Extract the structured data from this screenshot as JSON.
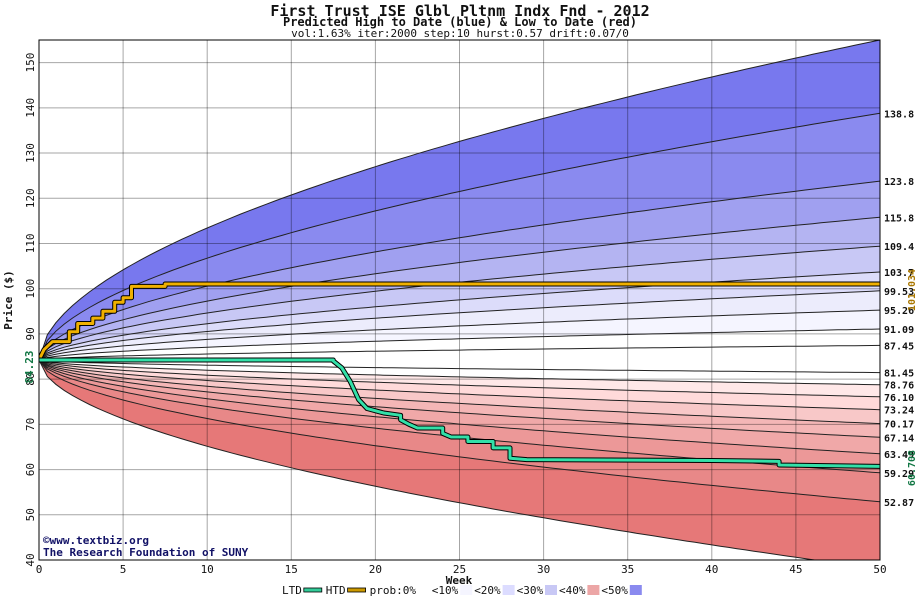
{
  "chart_data": {
    "type": "area",
    "title": "First Trust ISE Glbl Pltnm Indx Fnd - 2012",
    "subtitle": "Predicted High to Date (blue) &  Low to Date (red)",
    "params": "vol:1.63% iter:2000 step:10 hurst:0.57 drift:0.07/0",
    "xlabel": "Week",
    "ylabel": "Price ($)",
    "xlim": [
      0,
      50
    ],
    "ylim": [
      40,
      155
    ],
    "x_ticks": [
      0,
      5,
      10,
      15,
      20,
      25,
      30,
      35,
      40,
      45,
      50
    ],
    "y_ticks": [
      40,
      50,
      60,
      70,
      80,
      90,
      100,
      110,
      120,
      130,
      140,
      150
    ],
    "grid": true,
    "start_price": 84.23,
    "start_label": "84.23",
    "high_band_end_values": [
      87.45,
      91.09,
      95.26,
      99.53,
      103.7,
      109.4,
      115.8,
      123.8,
      138.8,
      155
    ],
    "low_band_end_values": [
      81.45,
      78.76,
      76.1,
      73.24,
      70.17,
      67.14,
      63.49,
      59.29,
      52.87,
      38
    ],
    "right_labels_high": [
      "87.45",
      "91.09",
      "95.26",
      "99.53",
      "103.7",
      "109.4",
      "115.8",
      "123.8",
      "138.8"
    ],
    "right_labels_low": [
      "81.45",
      "78.76",
      "76.10",
      "73.24",
      "70.17",
      "67.14",
      "63.49",
      "59.29",
      "52.87"
    ],
    "htd_label": "101.034",
    "ltd_label": "60.708",
    "htd_series": {
      "name": "HTD",
      "points": [
        [
          0,
          84.23
        ],
        [
          0.3,
          86.5
        ],
        [
          0.8,
          88.3
        ],
        [
          1.8,
          88.3
        ],
        [
          1.8,
          90.5
        ],
        [
          2.3,
          90.5
        ],
        [
          2.3,
          92.3
        ],
        [
          3.2,
          92.3
        ],
        [
          3.2,
          93.5
        ],
        [
          3.8,
          93.5
        ],
        [
          3.8,
          95.0
        ],
        [
          4.5,
          95.0
        ],
        [
          4.5,
          97.0
        ],
        [
          5.0,
          97.0
        ],
        [
          5.0,
          98.0
        ],
        [
          5.5,
          98.0
        ],
        [
          5.5,
          100.5
        ],
        [
          7.5,
          100.5
        ],
        [
          7.5,
          101.034
        ],
        [
          50,
          101.034
        ]
      ]
    },
    "ltd_series": {
      "name": "LTD",
      "points": [
        [
          0,
          84.23
        ],
        [
          17.5,
          84.23
        ],
        [
          17.5,
          84.0
        ],
        [
          18.0,
          82.5
        ],
        [
          18.5,
          79.5
        ],
        [
          19.0,
          75.5
        ],
        [
          19.5,
          73.5
        ],
        [
          20.5,
          72.5
        ],
        [
          21.5,
          72.0
        ],
        [
          21.5,
          71.0
        ],
        [
          22.0,
          70.0
        ],
        [
          22.5,
          69.2
        ],
        [
          24.0,
          69.2
        ],
        [
          24.0,
          68.0
        ],
        [
          24.5,
          67.2
        ],
        [
          25.5,
          67.2
        ],
        [
          25.5,
          66.2
        ],
        [
          27.0,
          66.2
        ],
        [
          27.0,
          64.8
        ],
        [
          28.0,
          64.8
        ],
        [
          28.0,
          62.5
        ],
        [
          29.0,
          62.2
        ],
        [
          40.0,
          62.0
        ],
        [
          44.0,
          61.8
        ],
        [
          44.0,
          61.0
        ],
        [
          50,
          60.708
        ]
      ]
    },
    "legend": [
      {
        "label": "LTD",
        "type": "line",
        "color": "#33cc99"
      },
      {
        "label": "HTD",
        "type": "line",
        "color": "#cc9900"
      },
      {
        "label": "prob:0%",
        "type": "swatch",
        "color": "#ffffff"
      },
      {
        "label": "<10%",
        "type": "swatch",
        "color": "#f5f5ff"
      },
      {
        "label": "<20%",
        "type": "swatch",
        "color": "#dcdcff"
      },
      {
        "label": "<30%",
        "type": "swatch",
        "color": "#c8c8f5"
      },
      {
        "label": "<40%",
        "type": "swatch",
        "color": "#eca6a6"
      },
      {
        "label": "<50%",
        "type": "swatch",
        "color": "#8a8aef"
      }
    ],
    "legend_placement": "bottom",
    "watermark": [
      "©www.textbiz.org",
      "The Research Foundation of SUNY"
    ]
  }
}
